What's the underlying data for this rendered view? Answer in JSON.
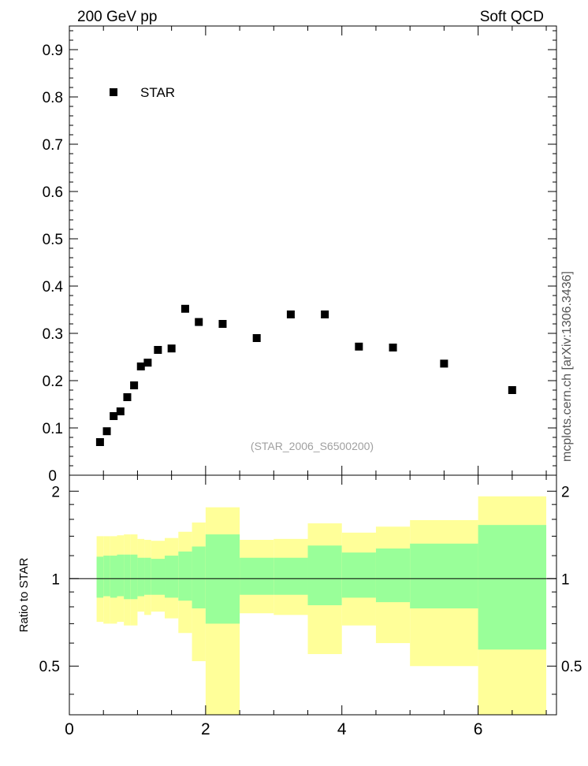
{
  "header": {
    "left_title": "200 GeV pp",
    "right_title": "Soft QCD",
    "side_label": "mcplots.cern.ch [arXiv:1306.3436]",
    "watermark": "(STAR_2006_S6500200)"
  },
  "chart_data": [
    {
      "type": "scatter",
      "panel": "main",
      "xlim": [
        0,
        7.15
      ],
      "ylim": [
        0,
        0.95
      ],
      "xticks": [
        0,
        2,
        4,
        6
      ],
      "yticks": [
        0.1,
        0.2,
        0.3,
        0.4,
        0.5,
        0.6,
        0.7,
        0.8,
        0.9
      ],
      "ytick_labels": [
        "0.1",
        "0.2",
        "0.3",
        "0.4",
        "0.5",
        "0.6",
        "0.7",
        "0.8",
        "0.9"
      ],
      "ylabel_bottom": "0",
      "legend": {
        "label": "STAR",
        "placement": "top-left"
      },
      "series": [
        {
          "name": "STAR",
          "color": "#000000",
          "x": [
            0.45,
            0.55,
            0.65,
            0.75,
            0.85,
            0.95,
            1.05,
            1.15,
            1.3,
            1.5,
            1.7,
            1.9,
            2.25,
            2.75,
            3.25,
            3.75,
            4.25,
            4.75,
            5.5,
            6.5
          ],
          "y": [
            0.07,
            0.093,
            0.125,
            0.135,
            0.165,
            0.19,
            0.23,
            0.238,
            0.265,
            0.268,
            0.352,
            0.324,
            0.32,
            0.29,
            0.34,
            0.34,
            0.272,
            0.27,
            0.236,
            0.18
          ]
        }
      ]
    },
    {
      "type": "area",
      "panel": "ratio",
      "ylabel": "Ratio to STAR",
      "xlim": [
        0,
        7.15
      ],
      "ylim": [
        0.34,
        2.27
      ],
      "xticks": [
        0,
        2,
        4,
        6
      ],
      "xtick_labels": [
        "0",
        "2",
        "4",
        "6"
      ],
      "yticks": [
        0.5,
        1,
        2
      ],
      "ytick_labels": [
        "0.5",
        "1",
        "2"
      ],
      "reference_line": 1,
      "colors": {
        "inner": "#99ff99",
        "outer": "#ffff99"
      },
      "bins": [
        {
          "x0": 0.4,
          "x1": 0.5,
          "in_lo": 0.86,
          "in_hi": 1.19,
          "out_lo": 0.71,
          "out_hi": 1.4
        },
        {
          "x0": 0.5,
          "x1": 0.6,
          "in_lo": 0.87,
          "in_hi": 1.2,
          "out_lo": 0.7,
          "out_hi": 1.4
        },
        {
          "x0": 0.6,
          "x1": 0.7,
          "in_lo": 0.86,
          "in_hi": 1.2,
          "out_lo": 0.7,
          "out_hi": 1.4
        },
        {
          "x0": 0.7,
          "x1": 0.8,
          "in_lo": 0.87,
          "in_hi": 1.21,
          "out_lo": 0.71,
          "out_hi": 1.41
        },
        {
          "x0": 0.8,
          "x1": 0.9,
          "in_lo": 0.85,
          "in_hi": 1.21,
          "out_lo": 0.69,
          "out_hi": 1.42
        },
        {
          "x0": 0.9,
          "x1": 1.0,
          "in_lo": 0.85,
          "in_hi": 1.21,
          "out_lo": 0.69,
          "out_hi": 1.42
        },
        {
          "x0": 1.0,
          "x1": 1.1,
          "in_lo": 0.87,
          "in_hi": 1.18,
          "out_lo": 0.77,
          "out_hi": 1.37
        },
        {
          "x0": 1.1,
          "x1": 1.2,
          "in_lo": 0.88,
          "in_hi": 1.18,
          "out_lo": 0.75,
          "out_hi": 1.36
        },
        {
          "x0": 1.2,
          "x1": 1.4,
          "in_lo": 0.88,
          "in_hi": 1.17,
          "out_lo": 0.77,
          "out_hi": 1.35
        },
        {
          "x0": 1.4,
          "x1": 1.6,
          "in_lo": 0.86,
          "in_hi": 1.2,
          "out_lo": 0.73,
          "out_hi": 1.38
        },
        {
          "x0": 1.6,
          "x1": 1.8,
          "in_lo": 0.84,
          "in_hi": 1.24,
          "out_lo": 0.65,
          "out_hi": 1.45
        },
        {
          "x0": 1.8,
          "x1": 2.0,
          "in_lo": 0.79,
          "in_hi": 1.29,
          "out_lo": 0.52,
          "out_hi": 1.56
        },
        {
          "x0": 2.0,
          "x1": 2.5,
          "in_lo": 0.7,
          "in_hi": 1.42,
          "out_lo": 0.34,
          "out_hi": 1.76
        },
        {
          "x0": 2.5,
          "x1": 3.0,
          "in_lo": 0.88,
          "in_hi": 1.18,
          "out_lo": 0.76,
          "out_hi": 1.36
        },
        {
          "x0": 3.0,
          "x1": 3.5,
          "in_lo": 0.88,
          "in_hi": 1.18,
          "out_lo": 0.75,
          "out_hi": 1.37
        },
        {
          "x0": 3.5,
          "x1": 4.0,
          "in_lo": 0.81,
          "in_hi": 1.3,
          "out_lo": 0.55,
          "out_hi": 1.55
        },
        {
          "x0": 4.0,
          "x1": 4.5,
          "in_lo": 0.86,
          "in_hi": 1.23,
          "out_lo": 0.69,
          "out_hi": 1.44
        },
        {
          "x0": 4.5,
          "x1": 5.0,
          "in_lo": 0.83,
          "in_hi": 1.27,
          "out_lo": 0.6,
          "out_hi": 1.51
        },
        {
          "x0": 5.0,
          "x1": 6.0,
          "in_lo": 0.79,
          "in_hi": 1.32,
          "out_lo": 0.5,
          "out_hi": 1.59
        },
        {
          "x0": 6.0,
          "x1": 7.0,
          "in_lo": 0.57,
          "in_hi": 1.53,
          "out_lo": 0.34,
          "out_hi": 1.92
        }
      ]
    }
  ]
}
